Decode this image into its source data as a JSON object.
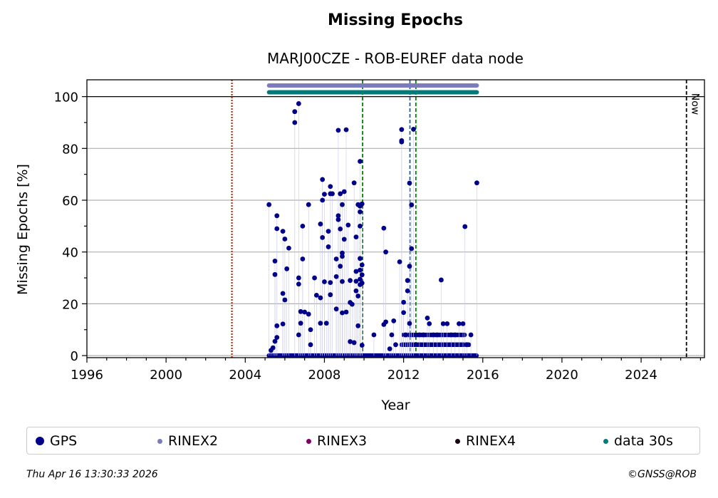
{
  "chart_data": {
    "type": "scatter",
    "title": "Missing Epochs",
    "subtitle": "MARJ00CZE - ROB-EUREF data node",
    "xlabel": "Year",
    "ylabel": "Missing Epochs [%]",
    "xlim": [
      1996,
      2027.2
    ],
    "ylim": [
      -0.8,
      106.5
    ],
    "x_ticks": [
      1996,
      2000,
      2004,
      2008,
      2012,
      2016,
      2020,
      2024
    ],
    "y_ticks": [
      0,
      20,
      40,
      60,
      80,
      100
    ],
    "grid": "horizontal",
    "reference_line": 100,
    "vertical_lines": [
      {
        "x": 2003.32,
        "color": "#008000",
        "style": "dotted"
      },
      {
        "x": 2003.33,
        "color": "#ff0000",
        "style": "dotted"
      },
      {
        "x": 2009.93,
        "color": "#008000",
        "style": "dashed"
      },
      {
        "x": 2012.32,
        "color": "#1f5fa8",
        "style": "dashed"
      },
      {
        "x": 2012.62,
        "color": "#008000",
        "style": "dashed"
      },
      {
        "x": 2026.29,
        "color": "#000000",
        "style": "dashed",
        "label": "Now"
      }
    ],
    "availability_bars": [
      {
        "name": "RINEX2",
        "color": "#7b7bbd",
        "y": 104.3,
        "x_start": 2005.2,
        "x_end": 2015.7
      },
      {
        "name": "data 30s",
        "color": "#007b7b",
        "y": 101.7,
        "x_start": 2005.2,
        "x_end": 2015.7
      }
    ],
    "series": [
      {
        "name": "GPS",
        "color": "#00008b",
        "points": [
          [
            2005.2,
            58.3
          ],
          [
            2005.5,
            36.5
          ],
          [
            2005.5,
            31.3
          ],
          [
            2005.6,
            54.0
          ],
          [
            2005.6,
            49.0
          ],
          [
            2005.6,
            11.5
          ],
          [
            2005.6,
            7.0
          ],
          [
            2005.5,
            5.5
          ],
          [
            2005.4,
            3.0
          ],
          [
            2005.3,
            2.0
          ],
          [
            2005.9,
            48.0
          ],
          [
            2005.9,
            24.0
          ],
          [
            2005.9,
            12.2
          ],
          [
            2006.0,
            45.0
          ],
          [
            2006.0,
            21.5
          ],
          [
            2006.2,
            41.5
          ],
          [
            2006.1,
            33.5
          ],
          [
            2006.5,
            94.2
          ],
          [
            2006.5,
            90.0
          ],
          [
            2006.7,
            97.3
          ],
          [
            2006.7,
            30.0
          ],
          [
            2006.7,
            27.6
          ],
          [
            2006.7,
            8.0
          ],
          [
            2006.8,
            17.0
          ],
          [
            2006.8,
            12.5
          ],
          [
            2006.9,
            50.0
          ],
          [
            2006.9,
            37.3
          ],
          [
            2007.0,
            16.8
          ],
          [
            2007.2,
            58.3
          ],
          [
            2007.2,
            16.0
          ],
          [
            2007.3,
            10.0
          ],
          [
            2007.3,
            4.2
          ],
          [
            2007.5,
            30.0
          ],
          [
            2007.6,
            23.3
          ],
          [
            2007.8,
            50.8
          ],
          [
            2007.8,
            22.3
          ],
          [
            2007.8,
            12.5
          ],
          [
            2007.9,
            68.0
          ],
          [
            2007.9,
            60.0
          ],
          [
            2007.9,
            45.6
          ],
          [
            2008.0,
            62.3
          ],
          [
            2008.0,
            28.5
          ],
          [
            2008.1,
            12.5
          ],
          [
            2008.2,
            42.0
          ],
          [
            2008.2,
            48.0
          ],
          [
            2008.3,
            62.5
          ],
          [
            2008.3,
            65.3
          ],
          [
            2008.3,
            28.2
          ],
          [
            2008.3,
            23.5
          ],
          [
            2008.4,
            62.5
          ],
          [
            2008.6,
            37.3
          ],
          [
            2008.6,
            30.5
          ],
          [
            2008.6,
            18.0
          ],
          [
            2008.7,
            87.0
          ],
          [
            2008.7,
            54.0
          ],
          [
            2008.7,
            52.5
          ],
          [
            2008.8,
            62.5
          ],
          [
            2008.8,
            48.9
          ],
          [
            2008.8,
            34.5
          ],
          [
            2008.9,
            58.3
          ],
          [
            2008.9,
            39.6
          ],
          [
            2008.9,
            38.3
          ],
          [
            2008.9,
            28.6
          ],
          [
            2008.9,
            16.5
          ],
          [
            2009.0,
            63.3
          ],
          [
            2009.0,
            44.9
          ],
          [
            2009.1,
            87.2
          ],
          [
            2009.1,
            16.8
          ],
          [
            2009.2,
            50.4
          ],
          [
            2009.3,
            29.0
          ],
          [
            2009.3,
            20.5
          ],
          [
            2009.4,
            19.8
          ],
          [
            2009.5,
            66.7
          ],
          [
            2009.6,
            45.8
          ],
          [
            2009.6,
            32.5
          ],
          [
            2009.6,
            28.7
          ],
          [
            2009.6,
            25.0
          ],
          [
            2009.7,
            58.3
          ],
          [
            2009.7,
            23.0
          ],
          [
            2009.7,
            11.5
          ],
          [
            2009.8,
            75.0
          ],
          [
            2009.8,
            57.7
          ],
          [
            2009.8,
            55.5
          ],
          [
            2009.8,
            50.0
          ],
          [
            2009.8,
            37.5
          ],
          [
            2009.8,
            33.0
          ],
          [
            2009.8,
            29.5
          ],
          [
            2009.8,
            27.4
          ],
          [
            2009.9,
            58.6
          ],
          [
            2009.9,
            35.0
          ],
          [
            2009.9,
            31.2
          ],
          [
            2009.9,
            28.0
          ],
          [
            2009.9,
            4.0
          ],
          [
            2009.5,
            5.0
          ],
          [
            2009.3,
            5.4
          ],
          [
            2010.5,
            8.0
          ],
          [
            2011.0,
            49.2
          ],
          [
            2011.1,
            40.0
          ],
          [
            2011.1,
            13.0
          ],
          [
            2011.0,
            12.0
          ],
          [
            2011.3,
            2.6
          ],
          [
            2011.4,
            8.0
          ],
          [
            2011.5,
            13.4
          ],
          [
            2011.6,
            4.2
          ],
          [
            2011.8,
            36.2
          ],
          [
            2011.9,
            87.3
          ],
          [
            2011.9,
            83.0
          ],
          [
            2011.9,
            82.5
          ],
          [
            2012.0,
            20.6
          ],
          [
            2012.0,
            16.6
          ],
          [
            2012.1,
            8.0
          ],
          [
            2012.2,
            29.0
          ],
          [
            2012.2,
            25.0
          ],
          [
            2012.3,
            66.6
          ],
          [
            2012.3,
            34.5
          ],
          [
            2012.3,
            12.4
          ],
          [
            2012.4,
            58.2
          ],
          [
            2012.4,
            41.3
          ],
          [
            2012.5,
            87.4
          ],
          [
            2012.8,
            8.0
          ],
          [
            2013.0,
            8.0
          ],
          [
            2013.2,
            14.5
          ],
          [
            2013.3,
            12.3
          ],
          [
            2013.5,
            8.0
          ],
          [
            2013.7,
            8.0
          ],
          [
            2013.9,
            29.2
          ],
          [
            2014.0,
            12.3
          ],
          [
            2014.2,
            12.3
          ],
          [
            2014.4,
            8.0
          ],
          [
            2014.6,
            8.0
          ],
          [
            2014.8,
            12.3
          ],
          [
            2015.0,
            12.3
          ],
          [
            2015.1,
            49.8
          ],
          [
            2015.2,
            4.2
          ],
          [
            2015.4,
            8.0
          ],
          [
            2015.7,
            66.7
          ]
        ]
      },
      {
        "name": "RINEX2",
        "color": "#7b7bbd",
        "points": []
      },
      {
        "name": "RINEX3",
        "color": "#800060",
        "points": []
      },
      {
        "name": "RINEX4",
        "color": "#1a0010",
        "points": []
      },
      {
        "name": "data 30s",
        "color": "#007b7b",
        "points": []
      }
    ],
    "dense_bands": [
      {
        "y": 0,
        "x_start": 2005.2,
        "x_end": 2015.7
      },
      {
        "y": 4.2,
        "x_start": 2011.9,
        "x_end": 2015.3
      },
      {
        "y": 8.0,
        "x_start": 2012.0,
        "x_end": 2015.1
      }
    ],
    "legend_placement": "bottom"
  },
  "legend": [
    {
      "label": "GPS",
      "color": "#00008b",
      "size": 12
    },
    {
      "label": "RINEX2",
      "color": "#7b7bbd",
      "size": 7
    },
    {
      "label": "RINEX3",
      "color": "#800060",
      "size": 7
    },
    {
      "label": "RINEX4",
      "color": "#1a0010",
      "size": 7
    },
    {
      "label": "data 30s",
      "color": "#007b7b",
      "size": 7
    }
  ],
  "now_label": "Now",
  "footer": {
    "timestamp": "Thu Apr 16 13:30:33 2026",
    "credit": "©GNSS@ROB"
  }
}
